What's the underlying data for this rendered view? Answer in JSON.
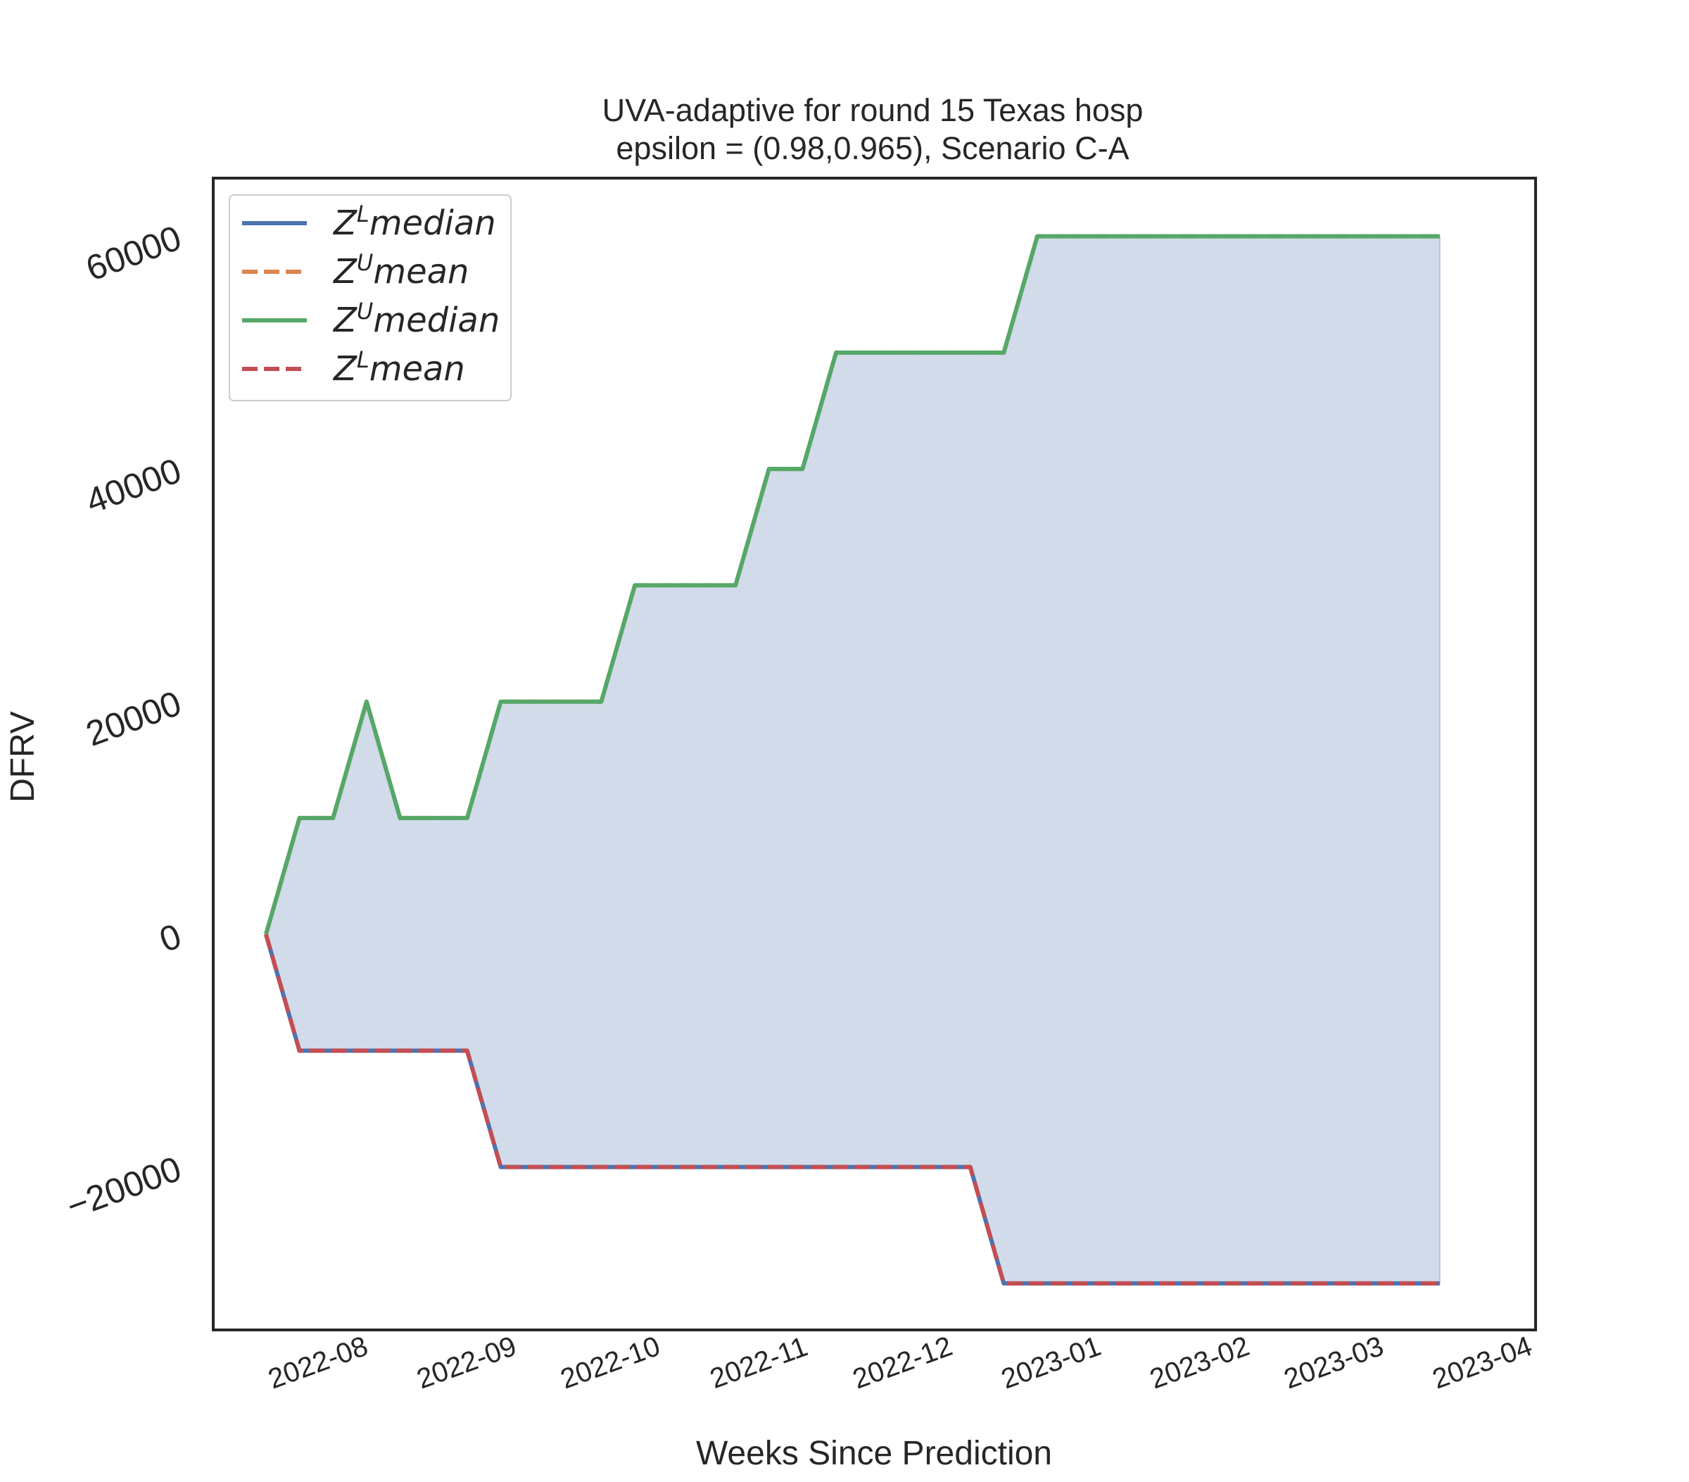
{
  "chart_data": {
    "type": "line",
    "title": "UVA-adaptive for round 15 Texas  hosp",
    "subtitle": "epsilon = (0.98,0.965), Scenario C-A",
    "xlabel": "Weeks Since Prediction",
    "ylabel": "DFRV",
    "x_tick_labels": [
      "2022-08",
      "2022-09",
      "2022-10",
      "2022-11",
      "2022-12",
      "2023-01",
      "2023-02",
      "2023-03",
      "2023-04"
    ],
    "y_tick_labels": [
      "60000",
      "40000",
      "20000",
      "0",
      "−20000"
    ],
    "y_ticks": [
      60000,
      40000,
      20000,
      0,
      -20000
    ],
    "ylim": [
      -34000,
      65000
    ],
    "xlim": [
      "2022-07-10",
      "2023-04-12"
    ],
    "grid": false,
    "legend_position": "top-left",
    "fill_between": {
      "lower": "Z^L median",
      "upper": "Z^U median",
      "color": "#d2dbea"
    },
    "x": [
      "2022-07-21",
      "2022-07-28",
      "2022-08-04",
      "2022-08-11",
      "2022-08-18",
      "2022-08-25",
      "2022-09-01",
      "2022-09-08",
      "2022-09-15",
      "2022-09-22",
      "2022-09-29",
      "2022-10-06",
      "2022-10-13",
      "2022-10-20",
      "2022-10-27",
      "2022-11-03",
      "2022-11-10",
      "2022-11-17",
      "2022-11-24",
      "2022-12-01",
      "2022-12-08",
      "2022-12-15",
      "2022-12-22",
      "2022-12-29",
      "2023-01-05",
      "2023-01-12",
      "2023-01-19",
      "2023-01-26",
      "2023-02-02",
      "2023-02-09",
      "2023-02-16",
      "2023-02-23",
      "2023-03-02",
      "2023-03-09",
      "2023-03-16",
      "2023-03-23"
    ],
    "series": [
      {
        "name": "Z^L median",
        "color": "#4c72b0",
        "dash": "solid",
        "values": [
          0,
          -10000,
          -10000,
          -10000,
          -10000,
          -10000,
          -10000,
          -20000,
          -20000,
          -20000,
          -20000,
          -20000,
          -20000,
          -20000,
          -20000,
          -20000,
          -20000,
          -20000,
          -20000,
          -20000,
          -20000,
          -20000,
          -30000,
          -30000,
          -30000,
          -30000,
          -30000,
          -30000,
          -30000,
          -30000,
          -30000,
          -30000,
          -30000,
          -30000,
          -30000,
          -30000
        ]
      },
      {
        "name": "Z^U mean",
        "color": "#dd8452",
        "dash": "dashed",
        "values": [
          0,
          10000,
          10000,
          20000,
          10000,
          10000,
          10000,
          20000,
          20000,
          20000,
          20000,
          30000,
          30000,
          30000,
          30000,
          40000,
          40000,
          50000,
          50000,
          50000,
          50000,
          50000,
          50000,
          60000,
          60000,
          60000,
          60000,
          60000,
          60000,
          60000,
          60000,
          60000,
          60000,
          60000,
          60000,
          60000
        ]
      },
      {
        "name": "Z^U median",
        "color": "#55a868",
        "dash": "solid",
        "values": [
          0,
          10000,
          10000,
          20000,
          10000,
          10000,
          10000,
          20000,
          20000,
          20000,
          20000,
          30000,
          30000,
          30000,
          30000,
          40000,
          40000,
          50000,
          50000,
          50000,
          50000,
          50000,
          50000,
          60000,
          60000,
          60000,
          60000,
          60000,
          60000,
          60000,
          60000,
          60000,
          60000,
          60000,
          60000,
          60000
        ]
      },
      {
        "name": "Z^L mean",
        "color": "#c44e52",
        "dash": "dashed",
        "values": [
          0,
          -10000,
          -10000,
          -10000,
          -10000,
          -10000,
          -10000,
          -20000,
          -20000,
          -20000,
          -20000,
          -20000,
          -20000,
          -20000,
          -20000,
          -20000,
          -20000,
          -20000,
          -20000,
          -20000,
          -20000,
          -20000,
          -30000,
          -30000,
          -30000,
          -30000,
          -30000,
          -30000,
          -30000,
          -30000,
          -30000,
          -30000,
          -30000,
          -30000,
          -30000,
          -30000
        ]
      }
    ],
    "legend": [
      {
        "sym": "Z",
        "sup": "L",
        "word": "median",
        "series": "Z^L median"
      },
      {
        "sym": "Z",
        "sup": "U",
        "word": "mean",
        "series": "Z^U mean"
      },
      {
        "sym": "Z",
        "sup": "U",
        "word": "median",
        "series": "Z^U median"
      },
      {
        "sym": "Z",
        "sup": "L",
        "word": "mean",
        "series": "Z^L mean"
      }
    ]
  }
}
